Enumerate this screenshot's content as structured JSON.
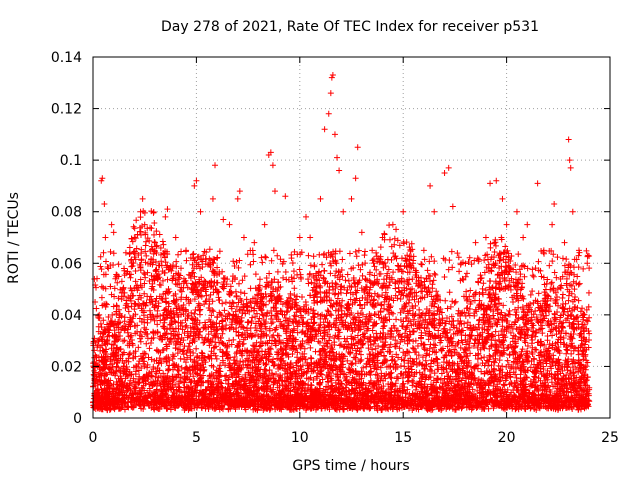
{
  "chart_data": {
    "type": "scatter",
    "title": "Day 278 of 2021, Rate Of TEC Index for receiver p531",
    "xlabel": "GPS time / hours",
    "ylabel": "ROTI / TECUs",
    "xlim": [
      0,
      25
    ],
    "ylim": [
      0,
      0.14
    ],
    "xticks": [
      0,
      5,
      10,
      15,
      20,
      25
    ],
    "yticks": [
      0,
      0.02,
      0.04,
      0.06,
      0.08,
      0.1,
      0.12,
      0.14
    ],
    "grid": true,
    "marker": "plus",
    "color": "#ff0000",
    "x_data_range": [
      0,
      24
    ],
    "series": [
      {
        "values_note_excluded": true,
        "points": [
          [
            0.1,
            0.045
          ],
          [
            0.3,
            0.04
          ],
          [
            0.4,
            0.092
          ],
          [
            0.45,
            0.093
          ],
          [
            0.55,
            0.083
          ],
          [
            0.6,
            0.07
          ],
          [
            0.9,
            0.075
          ],
          [
            1.0,
            0.072
          ],
          [
            1.5,
            0.058
          ],
          [
            2.0,
            0.07
          ],
          [
            2.3,
            0.08
          ],
          [
            2.4,
            0.085
          ],
          [
            2.5,
            0.075
          ],
          [
            3.0,
            0.068
          ],
          [
            3.5,
            0.078
          ],
          [
            3.6,
            0.081
          ],
          [
            4.0,
            0.07
          ],
          [
            4.5,
            0.065
          ],
          [
            4.9,
            0.09
          ],
          [
            5.0,
            0.092
          ],
          [
            5.2,
            0.08
          ],
          [
            5.8,
            0.085
          ],
          [
            5.9,
            0.098
          ],
          [
            6.3,
            0.077
          ],
          [
            6.6,
            0.075
          ],
          [
            7.0,
            0.085
          ],
          [
            7.1,
            0.088
          ],
          [
            7.3,
            0.07
          ],
          [
            7.8,
            0.068
          ],
          [
            8.3,
            0.075
          ],
          [
            8.5,
            0.102
          ],
          [
            8.6,
            0.103
          ],
          [
            8.7,
            0.098
          ],
          [
            8.8,
            0.088
          ],
          [
            9.3,
            0.086
          ],
          [
            9.6,
            0.062
          ],
          [
            10.0,
            0.07
          ],
          [
            10.3,
            0.078
          ],
          [
            10.5,
            0.07
          ],
          [
            11.0,
            0.085
          ],
          [
            11.2,
            0.112
          ],
          [
            11.4,
            0.118
          ],
          [
            11.5,
            0.126
          ],
          [
            11.55,
            0.132
          ],
          [
            11.6,
            0.133
          ],
          [
            11.7,
            0.11
          ],
          [
            11.8,
            0.101
          ],
          [
            11.9,
            0.096
          ],
          [
            12.1,
            0.08
          ],
          [
            12.5,
            0.085
          ],
          [
            12.7,
            0.093
          ],
          [
            12.8,
            0.105
          ],
          [
            13.0,
            0.072
          ],
          [
            13.5,
            0.065
          ],
          [
            14.0,
            0.07
          ],
          [
            14.5,
            0.075
          ],
          [
            15.0,
            0.08
          ],
          [
            15.3,
            0.06
          ],
          [
            16.0,
            0.065
          ],
          [
            16.3,
            0.09
          ],
          [
            16.5,
            0.08
          ],
          [
            17.0,
            0.095
          ],
          [
            17.2,
            0.097
          ],
          [
            17.4,
            0.082
          ],
          [
            17.8,
            0.06
          ],
          [
            18.5,
            0.068
          ],
          [
            19.0,
            0.07
          ],
          [
            19.2,
            0.091
          ],
          [
            19.5,
            0.092
          ],
          [
            19.8,
            0.085
          ],
          [
            20.0,
            0.075
          ],
          [
            20.5,
            0.08
          ],
          [
            20.8,
            0.07
          ],
          [
            21.0,
            0.075
          ],
          [
            21.5,
            0.091
          ],
          [
            21.8,
            0.065
          ],
          [
            22.2,
            0.075
          ],
          [
            22.3,
            0.083
          ],
          [
            22.8,
            0.068
          ],
          [
            23.0,
            0.108
          ],
          [
            23.05,
            0.1
          ],
          [
            23.1,
            0.097
          ],
          [
            23.2,
            0.08
          ],
          [
            23.5,
            0.065
          ],
          [
            23.9,
            0.06
          ]
        ]
      }
    ]
  }
}
